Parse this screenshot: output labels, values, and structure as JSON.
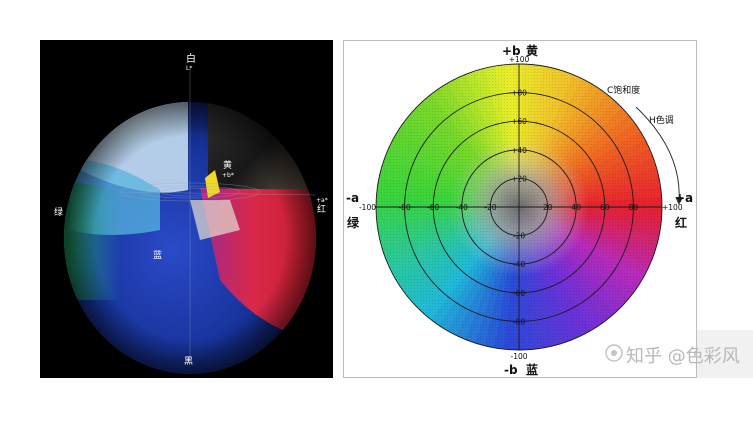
{
  "left_sphere": {
    "top_label": "白",
    "top_sub": "L*",
    "yellow_label": "黄",
    "yellow_sub": "+b*",
    "red_label": "红",
    "red_sub": "+a*",
    "green_label": "绿",
    "blue_label": "蓝",
    "bottom_label": "黑"
  },
  "chart_data": {
    "type": "polar-color-wheel",
    "labels": {
      "top_axis": "+b",
      "top_name": "黄",
      "bottom_axis": "-b",
      "bottom_name": "蓝",
      "left_axis": "-a",
      "left_name": "绿",
      "right_axis": "+a",
      "right_name": "红",
      "chroma": "C饱和度",
      "hue": "H色调"
    },
    "rings": [
      20,
      40,
      60,
      80,
      100
    ],
    "tick_values": [
      -100,
      -80,
      -60,
      -40,
      -20,
      20,
      40,
      60,
      80,
      100
    ],
    "tick_labels_h": [
      "-100",
      "-80",
      "-60",
      "-40",
      "-20",
      "20",
      "40",
      "60",
      "80",
      "+100"
    ],
    "tick_labels_v": [
      "+100",
      "+80",
      "+60",
      "+40",
      "+20",
      "-20",
      "-40",
      "-60",
      "-80",
      "-100"
    ],
    "range": [
      -100,
      100
    ]
  },
  "watermark": {
    "text": "知乎 @色彩风"
  },
  "colors": {
    "green": "#3ad43a",
    "yellow": "#f2ee2a",
    "red": "#e6202e",
    "magenta": "#a030c8",
    "blue": "#2a3ad8",
    "cyan": "#20c8c8",
    "gray_center": "#8c8c8c"
  }
}
